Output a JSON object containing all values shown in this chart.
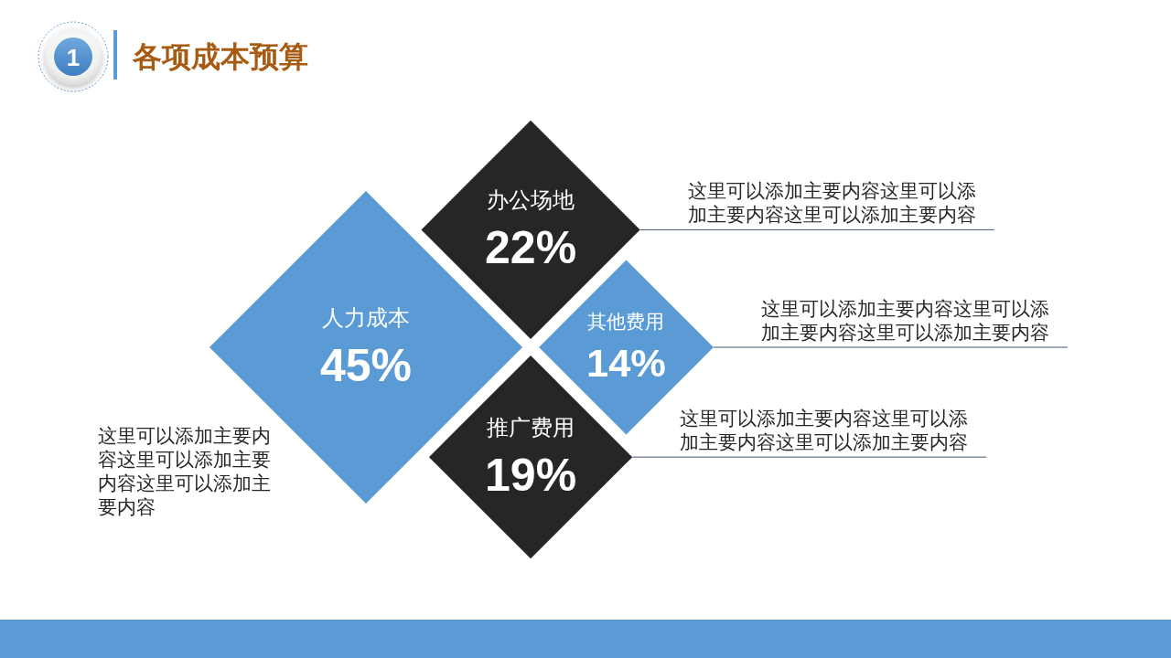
{
  "chart_data": {
    "type": "other",
    "title": "各项成本预算",
    "categories": [
      "人力成本",
      "办公场地",
      "其他费用",
      "推广费用"
    ],
    "values": [
      45,
      22,
      14,
      19
    ],
    "value_labels": [
      "45%",
      "22%",
      "14%",
      "19%"
    ],
    "colors": [
      "#5b9bd5",
      "#262626",
      "#5b9bd5",
      "#262626"
    ],
    "annotations": [
      "1",
      "这里可以添加主要内容这里可以添加主要内容这里可以添加主要内容",
      "这里可以添加主要内容这里可以添加主要内容这里可以添加主要内容",
      "这里可以添加主要内容这里可以添加主要内容这里可以添加主要内容",
      "这里可以添加主要内容这里可以添加主要内容这里可以添加主要内容"
    ]
  }
}
